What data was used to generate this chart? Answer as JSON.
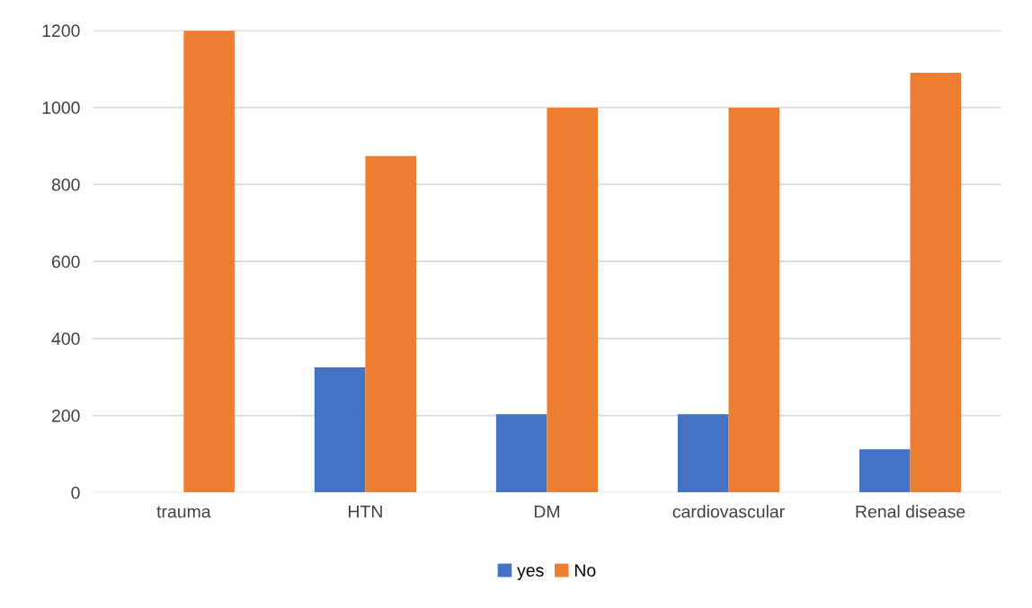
{
  "chart_data": {
    "type": "bar",
    "categories": [
      "trauma",
      "HTN",
      "DM",
      "cardiovascular",
      "Renal disease"
    ],
    "series": [
      {
        "name": "yes",
        "color": "#4472c4",
        "values": [
          0,
          325,
          203,
          203,
          112
        ]
      },
      {
        "name": "No",
        "color": "#ed7d31",
        "values": [
          1199,
          874,
          999,
          999,
          1090
        ]
      }
    ],
    "ylim": [
      0,
      1200
    ],
    "yticks": [
      0,
      200,
      400,
      600,
      800,
      1000,
      1200
    ],
    "grid": "y",
    "legend": "bottom"
  }
}
